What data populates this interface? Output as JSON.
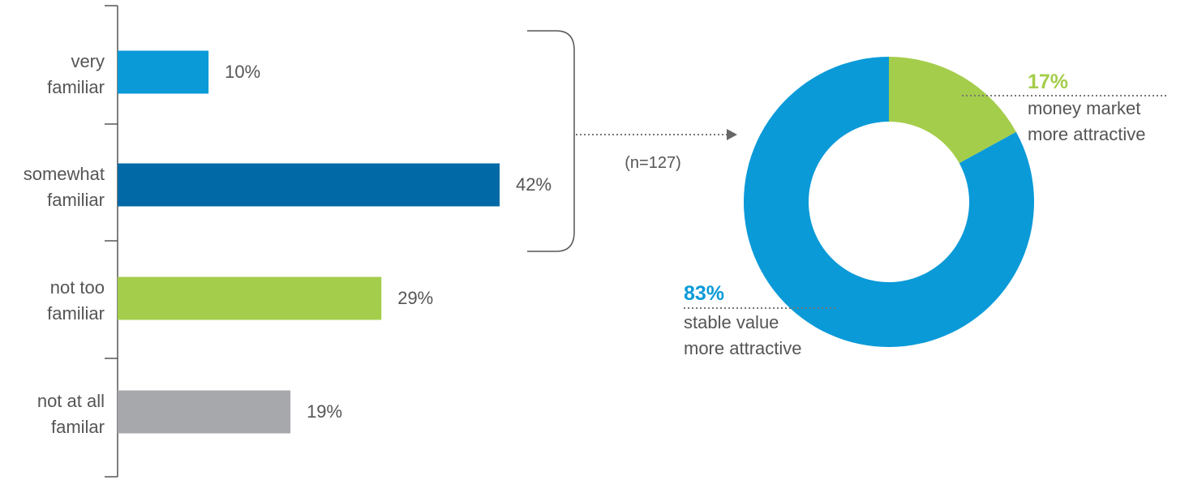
{
  "chart_data": [
    {
      "type": "bar",
      "orientation": "horizontal",
      "categories": [
        [
          "very",
          "familiar"
        ],
        [
          "somewhat",
          "familiar"
        ],
        [
          "not too",
          "familiar"
        ],
        [
          "not at all",
          "familar"
        ]
      ],
      "values": [
        10,
        42,
        29,
        19
      ],
      "value_labels": [
        "10%",
        "42%",
        "29%",
        "19%"
      ],
      "colors": [
        "#0a9ad8",
        "#0069a6",
        "#a4cd4b",
        "#a6a8ab"
      ],
      "xlim": [
        0,
        42
      ],
      "grid": false,
      "bracket": {
        "spans_categories": [
          0,
          1
        ],
        "note": "(n=127)"
      }
    },
    {
      "type": "pie",
      "style": "donut",
      "slices": [
        {
          "value": 17,
          "label_value": "17%",
          "label": [
            "money market",
            "more attractive"
          ],
          "color": "#a4cd4b"
        },
        {
          "value": 83,
          "label_value": "83%",
          "label": [
            "stable value",
            "more attractive"
          ],
          "color": "#0a9ad8"
        }
      ]
    }
  ],
  "colors": {
    "axis": "#555555",
    "text": "#555555",
    "dotted_leader": "#777777"
  }
}
